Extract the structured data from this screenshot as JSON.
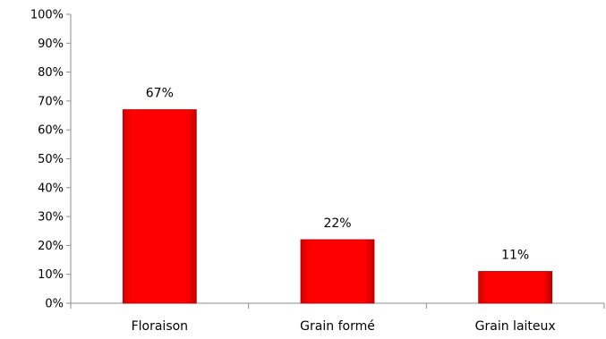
{
  "chart_data": {
    "type": "bar",
    "title": "",
    "xlabel": "",
    "ylabel": "",
    "categories": [
      "Floraison",
      "Grain formé",
      "Grain laiteux"
    ],
    "series": [
      {
        "values": [
          67,
          22,
          11
        ]
      }
    ],
    "data_labels": [
      "67%",
      "22%",
      "11%"
    ],
    "ylim": [
      0,
      100
    ],
    "y_ticks": [
      0,
      10,
      20,
      30,
      40,
      50,
      60,
      70,
      80,
      90,
      100
    ],
    "y_tick_labels": [
      "0%",
      "10%",
      "20%",
      "30%",
      "40%",
      "50%",
      "60%",
      "70%",
      "80%",
      "90%",
      "100%"
    ],
    "grid": false,
    "legend": "none",
    "colors": {
      "bar": "#ff0000",
      "bar_edge": "#b00000",
      "axis": "#8c8c8c"
    }
  }
}
